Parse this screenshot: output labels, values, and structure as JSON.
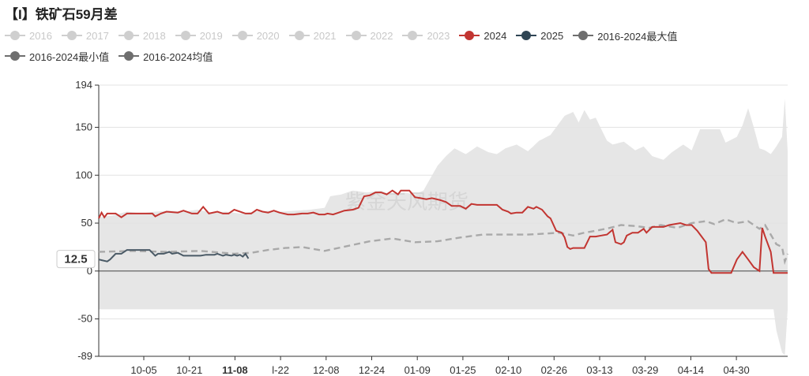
{
  "title": "【I】铁矿石59月差",
  "legend_row1": [
    {
      "name": "2016",
      "color": "#cfcfcf",
      "active": false
    },
    {
      "name": "2017",
      "color": "#cfcfcf",
      "active": false
    },
    {
      "name": "2018",
      "color": "#cfcfcf",
      "active": false
    },
    {
      "name": "2019",
      "color": "#cfcfcf",
      "active": false
    },
    {
      "name": "2020",
      "color": "#cfcfcf",
      "active": false
    },
    {
      "name": "2021",
      "color": "#cfcfcf",
      "active": false
    },
    {
      "name": "2022",
      "color": "#cfcfcf",
      "active": false
    },
    {
      "name": "2023",
      "color": "#cfcfcf",
      "active": false
    },
    {
      "name": "2024",
      "color": "#c23531",
      "active": true
    },
    {
      "name": "2025",
      "color": "#2f4554",
      "active": true
    },
    {
      "name": "2016-2024最大值",
      "color": "#6e6e6e",
      "active": true
    }
  ],
  "legend_row2": [
    {
      "name": "2016-2024最小值",
      "color": "#6e6e6e",
      "active": true
    },
    {
      "name": "2016-2024均值",
      "color": "#6e6e6e",
      "active": true
    }
  ],
  "watermark": "紫金天风期货",
  "tooltip_value": "12.5",
  "chart_data": {
    "type": "line",
    "x_range": [
      "09-25",
      "05-15"
    ],
    "x_tick_labels": [
      "10-05",
      "10-21",
      "11-08",
      "l-22",
      "12-08",
      "12-24",
      "01-09",
      "01-25",
      "02-10",
      "02-26",
      "03-13",
      "03-29",
      "04-14",
      "04-30"
    ],
    "highlighted_tick": "11-08",
    "y_ticks": [
      194,
      150,
      100,
      50,
      0,
      -50,
      -89
    ],
    "ylim": [
      -89,
      194
    ],
    "grid": "horizontal",
    "legend_position": "top",
    "colors": {
      "s2024": "#c23531",
      "s2025": "#4a5a66",
      "mean": "#a9a9a9",
      "band": "#e6e6e6"
    },
    "band": {
      "upper": [
        [
          0,
          56
        ],
        [
          5,
          58
        ],
        [
          10,
          62
        ],
        [
          15,
          60
        ],
        [
          20,
          62
        ],
        [
          25,
          63
        ],
        [
          30,
          62
        ],
        [
          35,
          64
        ],
        [
          40,
          61
        ],
        [
          45,
          62
        ],
        [
          50,
          60
        ],
        [
          55,
          62
        ],
        [
          60,
          63
        ],
        [
          65,
          62
        ],
        [
          70,
          63
        ],
        [
          75,
          64
        ],
        [
          80,
          66
        ],
        [
          82,
          78
        ],
        [
          86,
          80
        ],
        [
          90,
          84
        ],
        [
          95,
          82
        ],
        [
          100,
          84
        ],
        [
          103,
          80
        ],
        [
          108,
          82
        ],
        [
          112,
          80
        ],
        [
          115,
          84
        ],
        [
          120,
          110
        ],
        [
          123,
          120
        ],
        [
          126,
          128
        ],
        [
          130,
          122
        ],
        [
          134,
          130
        ],
        [
          138,
          124
        ],
        [
          141,
          122
        ],
        [
          144,
          128
        ],
        [
          148,
          132
        ],
        [
          152,
          125
        ],
        [
          156,
          136
        ],
        [
          160,
          142
        ],
        [
          162,
          150
        ],
        [
          165,
          162
        ],
        [
          168,
          166
        ],
        [
          170,
          155
        ],
        [
          172,
          168
        ],
        [
          174,
          158
        ],
        [
          176,
          160
        ],
        [
          180,
          136
        ],
        [
          182,
          132
        ],
        [
          186,
          135
        ],
        [
          190,
          126
        ],
        [
          193,
          130
        ],
        [
          196,
          120
        ],
        [
          200,
          116
        ],
        [
          203,
          124
        ],
        [
          207,
          132
        ],
        [
          210,
          126
        ],
        [
          213,
          148
        ],
        [
          220,
          148
        ],
        [
          222,
          134
        ],
        [
          226,
          140
        ],
        [
          228,
          152
        ],
        [
          230,
          170
        ],
        [
          232,
          150
        ],
        [
          234,
          128
        ],
        [
          236,
          126
        ],
        [
          238,
          122
        ],
        [
          240,
          130
        ],
        [
          242,
          140
        ],
        [
          243,
          180
        ],
        [
          244,
          125
        ]
      ],
      "lower": [
        [
          0,
          -40
        ],
        [
          60,
          -40
        ],
        [
          120,
          -40
        ],
        [
          180,
          -40
        ],
        [
          239,
          -40
        ],
        [
          240,
          -62
        ],
        [
          242,
          -85
        ],
        [
          243,
          -88
        ],
        [
          244,
          -40
        ]
      ]
    },
    "series": [
      {
        "name": "2024",
        "values": [
          [
            0,
            55
          ],
          [
            1,
            61
          ],
          [
            2,
            56
          ],
          [
            3,
            60
          ],
          [
            6,
            60
          ],
          [
            8,
            56
          ],
          [
            10,
            60
          ],
          [
            19,
            60
          ],
          [
            20,
            57
          ],
          [
            22,
            60
          ],
          [
            24,
            62
          ],
          [
            28,
            61
          ],
          [
            30,
            63
          ],
          [
            33,
            60
          ],
          [
            35,
            60
          ],
          [
            37,
            67
          ],
          [
            39,
            60
          ],
          [
            42,
            62
          ],
          [
            44,
            60
          ],
          [
            46,
            60
          ],
          [
            48,
            64
          ],
          [
            52,
            60
          ],
          [
            54,
            60
          ],
          [
            56,
            64
          ],
          [
            58,
            62
          ],
          [
            60,
            61
          ],
          [
            62,
            63
          ],
          [
            64,
            61
          ],
          [
            67,
            59
          ],
          [
            69,
            59
          ],
          [
            72,
            60
          ],
          [
            74,
            60
          ],
          [
            76,
            61
          ],
          [
            78,
            59
          ],
          [
            80,
            59
          ],
          [
            81,
            60
          ],
          [
            83,
            59
          ],
          [
            85,
            61
          ],
          [
            87,
            63
          ],
          [
            90,
            64
          ],
          [
            92,
            66
          ],
          [
            94,
            78
          ],
          [
            96,
            79
          ],
          [
            98,
            82
          ],
          [
            100,
            82
          ],
          [
            102,
            80
          ],
          [
            104,
            84
          ],
          [
            106,
            80
          ],
          [
            107,
            84
          ],
          [
            110,
            84
          ],
          [
            112,
            77
          ],
          [
            114,
            76
          ],
          [
            116,
            75
          ],
          [
            118,
            76
          ],
          [
            121,
            74
          ],
          [
            123,
            72
          ],
          [
            125,
            68
          ],
          [
            128,
            68
          ],
          [
            130,
            65
          ],
          [
            132,
            70
          ],
          [
            134,
            69
          ],
          [
            141,
            69
          ],
          [
            143,
            64
          ],
          [
            145,
            62
          ],
          [
            146,
            60
          ],
          [
            148,
            61
          ],
          [
            150,
            61
          ],
          [
            152,
            67
          ],
          [
            154,
            65
          ],
          [
            155,
            67
          ],
          [
            157,
            64
          ],
          [
            159,
            57
          ],
          [
            160,
            55
          ],
          [
            162,
            42
          ],
          [
            164,
            40
          ],
          [
            165,
            35
          ],
          [
            166,
            25
          ],
          [
            167,
            23
          ],
          [
            168,
            24
          ],
          [
            172,
            24
          ],
          [
            173,
            30
          ],
          [
            174,
            36
          ],
          [
            176,
            36
          ],
          [
            178,
            37
          ],
          [
            180,
            38
          ],
          [
            182,
            43
          ],
          [
            183,
            30
          ],
          [
            185,
            28
          ],
          [
            186,
            30
          ],
          [
            187,
            37
          ],
          [
            189,
            40
          ],
          [
            191,
            40
          ],
          [
            193,
            44
          ],
          [
            194,
            40
          ],
          [
            196,
            46
          ],
          [
            200,
            46
          ],
          [
            202,
            48
          ],
          [
            206,
            50
          ],
          [
            208,
            48
          ],
          [
            210,
            48
          ],
          [
            212,
            42
          ],
          [
            213,
            38
          ],
          [
            215,
            30
          ],
          [
            216,
            2
          ],
          [
            217,
            -2
          ],
          [
            223,
            -2
          ],
          [
            224,
            -2
          ],
          [
            226,
            12
          ],
          [
            228,
            20
          ],
          [
            230,
            12
          ],
          [
            232,
            4
          ],
          [
            234,
            0
          ],
          [
            235,
            45
          ],
          [
            236,
            36
          ],
          [
            238,
            20
          ],
          [
            239,
            -2
          ],
          [
            244,
            -2
          ]
        ]
      },
      {
        "name": "2025",
        "values": [
          [
            0,
            12
          ],
          [
            3,
            10
          ],
          [
            4,
            12
          ],
          [
            6,
            18
          ],
          [
            8,
            18
          ],
          [
            10,
            22
          ],
          [
            18,
            22
          ],
          [
            20,
            16
          ],
          [
            21,
            18
          ],
          [
            23,
            18
          ],
          [
            25,
            20
          ],
          [
            26,
            18
          ],
          [
            28,
            19
          ],
          [
            30,
            16
          ],
          [
            36,
            16
          ],
          [
            38,
            17
          ],
          [
            41,
            17
          ],
          [
            42,
            18
          ],
          [
            44,
            16
          ],
          [
            45,
            17
          ],
          [
            47,
            16
          ],
          [
            48,
            17
          ],
          [
            49,
            16
          ],
          [
            50,
            17
          ],
          [
            51,
            15
          ],
          [
            52,
            18
          ],
          [
            53,
            13
          ]
        ]
      },
      {
        "name": "2016-2024均值",
        "values": [
          [
            0,
            20
          ],
          [
            12,
            21
          ],
          [
            24,
            20
          ],
          [
            36,
            21
          ],
          [
            48,
            18
          ],
          [
            54,
            19
          ],
          [
            60,
            22
          ],
          [
            66,
            24
          ],
          [
            72,
            25
          ],
          [
            80,
            21
          ],
          [
            88,
            26
          ],
          [
            96,
            31
          ],
          [
            104,
            34
          ],
          [
            112,
            30
          ],
          [
            120,
            31
          ],
          [
            128,
            35
          ],
          [
            136,
            38
          ],
          [
            144,
            38
          ],
          [
            152,
            38
          ],
          [
            158,
            39
          ],
          [
            163,
            40
          ],
          [
            168,
            37
          ],
          [
            172,
            40
          ],
          [
            176,
            42
          ],
          [
            181,
            45
          ],
          [
            185,
            48
          ],
          [
            190,
            47
          ],
          [
            195,
            45
          ],
          [
            199,
            48
          ],
          [
            205,
            45
          ],
          [
            210,
            50
          ],
          [
            215,
            52
          ],
          [
            218,
            49
          ],
          [
            222,
            54
          ],
          [
            226,
            50
          ],
          [
            230,
            52
          ],
          [
            234,
            44
          ],
          [
            236,
            48
          ],
          [
            238,
            38
          ],
          [
            240,
            28
          ],
          [
            242,
            25
          ],
          [
            243,
            10
          ],
          [
            244,
            18
          ]
        ]
      }
    ]
  }
}
